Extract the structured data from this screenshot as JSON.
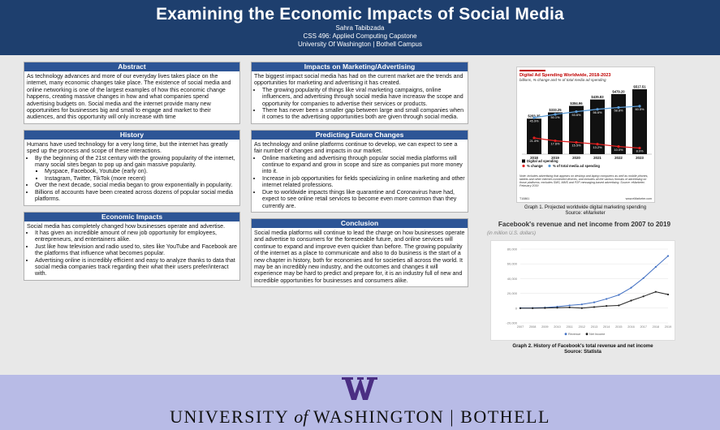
{
  "header": {
    "title": "Examining the Economic Impacts of Social Media",
    "author": "Sahra Tabibzada",
    "course": "CSS 496: Applied Computing Capstone",
    "campus": "University Of Washington | Bothell Campus"
  },
  "abstract": {
    "heading": "Abstract",
    "text": "As technology advances and more of our everyday lives takes place on the internet, many economic changes take place. The existence of social media and online networking is one of the largest examples of how this economic change happens, creating massive changes in how and what companies spend advertising budgets on. Social media and the internet provide many new opportunities for businesses big and small to engage and market to their audiences, and this opportunity will only increase with time"
  },
  "history": {
    "heading": "History",
    "intro": "Humans have used technology for a very long time, but the internet has greatly sped up the process and scope of these interactions.",
    "b1": "By the beginning of the 21st century with the growing popularity of the internet, many social sites began to pop up and gain massive popularity.",
    "b1a": "Myspace, Facebook, Youtube (early on).",
    "b1b": "Instagram, Twitter, TikTok (more recent)",
    "b2": "Over the next decade, social media began to grow exponentially in popularity.",
    "b3": "Billions of accounts have been created across dozens of popular social media platforms."
  },
  "economic": {
    "heading": "Economic Impacts",
    "intro": "Social media has completely changed how businesses operate and advertise.",
    "b1": "It has  given an incredible amount of new job opportunity for employees, entrepreneurs, and entertainers alike.",
    "b2": "Just like how television and radio used to, sites like YouTube and Facebook are the platforms that influence what becomes popular.",
    "b3": "Advertising online is incredibly efficient and easy to analyze thanks to data that social media companies track regarding their what their users prefer/interact with."
  },
  "marketing": {
    "heading": "Impacts on Marketing/Advertising",
    "intro": "The biggest impact social media has had on the current market are the trends and opportunities  for marketing and advertising it has created.",
    "b1": "The growing popularity of things like viral marketing campaigns, online influencers, and advertising through social media have increasw the scope and opportunity for companies to advertise their services or products.",
    "b2": "There has never been a smaller gap between large and small companies when it comes to the advertising opportunities both are given through social media."
  },
  "predicting": {
    "heading": "Predicting Future Changes",
    "intro": "As technology and online platforms continue to develop, we can expect to see a fair number of changes and impacts in our market.",
    "b1": "Online marketing and advertising through popular social media platforms will continue to expand and grow in scope and size as companies put more money into it.",
    "b2": "Increase in job opportunities for fields specializing in online marketing and other internet related professions.",
    "b3": "Due to worldwide impacts things like quarantine and Coronavirus have had, expect to see online retail services to become even more common than they currently are."
  },
  "conclusion": {
    "heading": "Conclusion",
    "text": "Social media platforms will continue to lead the charge on how businesses operate and advertise to consumers for the foreseeable future, and online services will continue to expand and improve even quicker than before. The growing popularity of the internet as a place to communicate and also to do business is the start of a new chapter in history, both for economies and for societies all across the world. It may be an incredibly new industry, and the outcomes and changes it will experience may be hard to predict and prepare for, it is an industry full of new and incredible opportunities for businesses and consumers alike."
  },
  "graph1": {
    "caption": "Graph 1. Projected worldwide digital marketing spending",
    "source": "Source: eMarketer",
    "note": "Note: includes advertising that appears on desktop and laptop computers as well as mobile phones, tablets and other internet-connected devices, and includes all the various formats of advertising on those platforms; excludes SMS, MMS and P2P messaging-based advertising. Source: eMarketer, February 2019",
    "footer_id": "T10861",
    "footer_site": "www.eMarketer.com"
  },
  "graph2": {
    "title": "Facebook's revenue and net income from 2007 to 2019",
    "subtitle": "(in million U.S. dollars)",
    "caption": "Graph 2. History of Facebook's total revenue and net income",
    "source": "Source: Statista"
  },
  "chart_data": [
    {
      "type": "bar",
      "title": "Digital Ad Spending Worldwide, 2018-2023",
      "subtitle": "billions, % change and % of total media ad spending",
      "categories": [
        "2018",
        "2019",
        "2020",
        "2021",
        "2022",
        "2023"
      ],
      "ylim": [
        0,
        550
      ],
      "series": [
        {
          "name": "Digital ad spending",
          "values": [
            283.35,
            333.25,
            384.96,
            435.83,
            479.2,
            517.51
          ],
          "labels": [
            "$283.35",
            "$333.25",
            "$384.96",
            "$435.83",
            "$479.20",
            "$517.51"
          ],
          "color": "#111111"
        },
        {
          "name": "% change",
          "values": [
            21.4,
            17.6,
            15.5,
            13.2,
            10.0,
            8.0
          ],
          "labels": [
            "21.4%",
            "17.6%",
            "15.5%",
            "13.2%",
            "10.0%",
            "8.0%"
          ],
          "color": "#e02020"
        },
        {
          "name": "% of total media ad spending",
          "values": [
            45.9,
            50.1,
            53.6,
            56.6,
            58.8,
            60.5
          ],
          "labels": [
            "45.9%",
            "50.1%",
            "53.6%",
            "56.6%",
            "58.8%",
            "60.5%"
          ],
          "color": "#5b9bd5"
        }
      ],
      "legend_position": "bottom-left"
    },
    {
      "type": "line",
      "x": [
        "2007",
        "2008",
        "2009",
        "2010",
        "2011",
        "2012",
        "2013",
        "2014",
        "2015",
        "2016",
        "2017",
        "2018",
        "2019"
      ],
      "ylim": [
        -20000,
        80000
      ],
      "yticks": [
        "80,000",
        "60,000",
        "40,000",
        "20,000",
        "0",
        "-20,000"
      ],
      "series": [
        {
          "name": "Revenue",
          "values": [
            153,
            272,
            777,
            1974,
            3711,
            5089,
            7872,
            12466,
            17928,
            27638,
            40653,
            55838,
            70697
          ],
          "color": "#4472c4"
        },
        {
          "name": "Net Income",
          "values": [
            -138,
            -56,
            229,
            606,
            1000,
            53,
            1500,
            2940,
            3688,
            10217,
            15934,
            22112,
            18485
          ],
          "color": "#222222"
        }
      ],
      "legend_position": "bottom"
    }
  ]
}
